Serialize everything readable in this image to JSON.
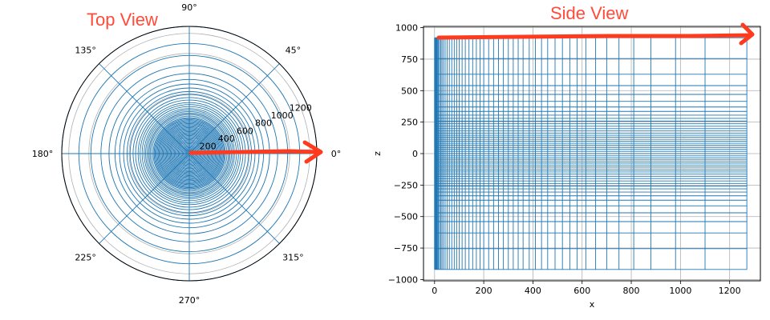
{
  "annotations": {
    "top_title": "Top View",
    "side_title": "Side View",
    "color": "#ff4b3a"
  },
  "colors": {
    "mesh": "#1f77b4",
    "grid": "#b0b0b0",
    "frame": "#000000",
    "arrow": "#ff3b1f"
  },
  "chart_data": [
    {
      "type": "polar",
      "title": "Top View",
      "rlim": [
        0,
        1270
      ],
      "r_ticks": [
        200,
        400,
        600,
        800,
        1000,
        1200
      ],
      "r_tick_labels": [
        "200",
        "400",
        "600",
        "800",
        "1000",
        "1200"
      ],
      "theta_tick_labels": [
        "0°",
        "45°",
        "90°",
        "135°",
        "180°",
        "225°",
        "270°",
        "315°"
      ],
      "grid": true,
      "mesh_radii": [
        0,
        10,
        20,
        30,
        40,
        50,
        60,
        70,
        80,
        90,
        100,
        110,
        120,
        130,
        140,
        150,
        160,
        170,
        180,
        190,
        200,
        210,
        220,
        230,
        240,
        250,
        260,
        270,
        280,
        290,
        300,
        310,
        320,
        330,
        340,
        350,
        360,
        375,
        390,
        405,
        420,
        435,
        450,
        470,
        490,
        510,
        535,
        560,
        590,
        620,
        655,
        695,
        740,
        800,
        880,
        980,
        1100,
        1270
      ],
      "mesh_radial_angles_deg": [
        0,
        45,
        90,
        135,
        180,
        225,
        270,
        315
      ]
    },
    {
      "type": "mesh",
      "title": "Side View",
      "xlabel": "x",
      "ylabel": "z",
      "xlim": [
        -45,
        1325
      ],
      "ylim": [
        -1010,
        1010
      ],
      "x_ticks": [
        0,
        200,
        400,
        600,
        800,
        1000,
        1200
      ],
      "x_tick_labels": [
        "0",
        "200",
        "400",
        "600",
        "800",
        "1000",
        "1200"
      ],
      "y_ticks": [
        -1000,
        -750,
        -500,
        -250,
        0,
        250,
        500,
        750,
        1000
      ],
      "y_tick_labels": [
        "−1000",
        "−750",
        "−500",
        "−250",
        "0",
        "250",
        "500",
        "750",
        "1000"
      ],
      "grid": true,
      "x_lines": [
        0,
        2,
        4,
        6,
        8,
        10,
        13,
        16,
        20,
        25,
        30,
        36,
        43,
        51,
        60,
        70,
        80,
        90,
        100,
        112,
        125,
        140,
        155,
        170,
        185,
        200,
        220,
        240,
        260,
        280,
        300,
        320,
        340,
        360,
        385,
        410,
        435,
        460,
        490,
        520,
        550,
        580,
        615,
        655,
        700,
        750,
        810,
        880,
        980,
        1100,
        1270
      ],
      "z_lines": [
        -920,
        -755,
        -630,
        -540,
        -470,
        -415,
        -370,
        -335,
        -305,
        -280,
        -258,
        -237,
        -217,
        -198,
        -180,
        -163,
        -146,
        -130,
        -114,
        -98,
        -82,
        -66,
        -50,
        -34,
        -18,
        0,
        18,
        34,
        50,
        66,
        82,
        98,
        114,
        130,
        146,
        163,
        180,
        198,
        217,
        237,
        258,
        280,
        305,
        335,
        370,
        415,
        470,
        540,
        630,
        755,
        920
      ]
    }
  ]
}
